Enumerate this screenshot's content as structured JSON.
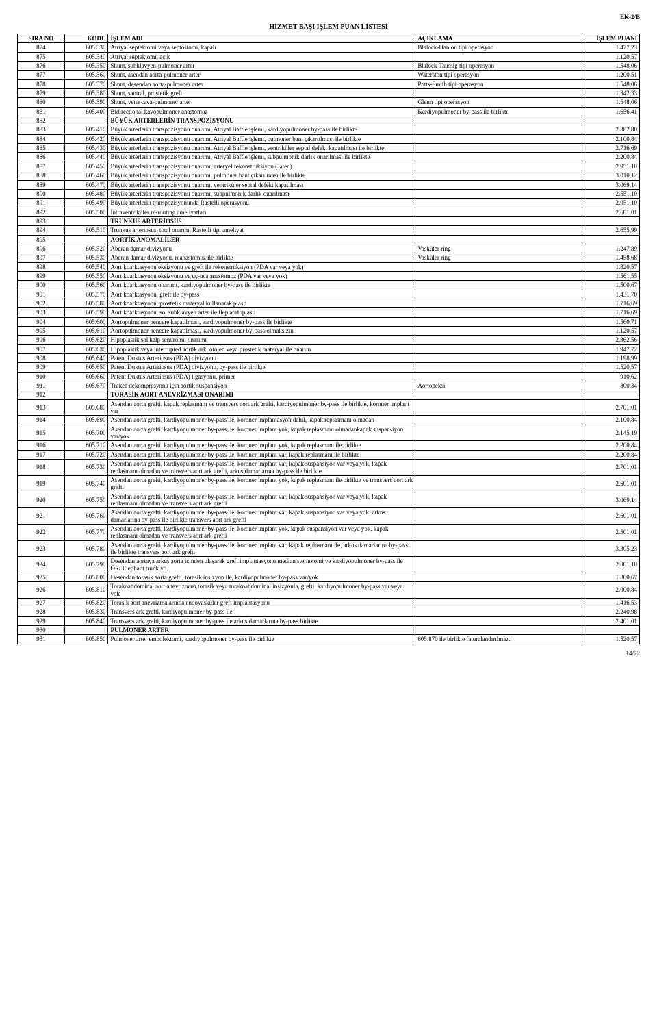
{
  "header_label": "EK-2/B",
  "title": "HİZMET BAŞI İŞLEM PUAN LİSTESİ",
  "footer": "14/72",
  "columns": [
    "SIRA NO",
    "KODU",
    "İŞLEM ADI",
    "AÇIKLAMA",
    "İŞLEM PUANI"
  ],
  "rows": [
    {
      "sira": "874",
      "kodu": "605.330",
      "adi": "Atriyal septektomi veya septostomi, kapalı",
      "aciklama": "Blalock-Hanlon tipi operasyon",
      "puan": "1.477,23"
    },
    {
      "sira": "875",
      "kodu": "605.340",
      "adi": "Atriyal septektomi, açık",
      "aciklama": "",
      "puan": "1.120,57"
    },
    {
      "sira": "876",
      "kodu": "605.350",
      "adi": "Shunt, subklavyen-pulmoner arter",
      "aciklama": "Blalock-Taussig tipi operasyon",
      "puan": "1.548,06"
    },
    {
      "sira": "877",
      "kodu": "605.360",
      "adi": "Shunt, asendan aorta-pulmoner arter",
      "aciklama": "Waterston tipi operasyon",
      "puan": "1.200,51"
    },
    {
      "sira": "878",
      "kodu": "605.370",
      "adi": "Shunt, desendan aorta-pulmoner arter",
      "aciklama": "Potts-Smith tipi operasyon",
      "puan": "1.548,06"
    },
    {
      "sira": "879",
      "kodu": "605.380",
      "adi": "Shunt, santral, prostetik greft",
      "aciklama": "",
      "puan": "1.342,33"
    },
    {
      "sira": "880",
      "kodu": "605.390",
      "adi": "Shunt, vena cava-pulmoner arter",
      "aciklama": "Glenn tipi operasyon",
      "puan": "1.548,06"
    },
    {
      "sira": "881",
      "kodu": "605.400",
      "adi": "Bidirectional kavopulmoner anastomoz",
      "aciklama": "Kardiyopulmoner by-pass ile birlikte",
      "puan": "1.656,41"
    },
    {
      "sira": "882",
      "kodu": "",
      "adi": "BÜYÜK ARTERLERİN TRANSPOZİSYONU",
      "aciklama": "",
      "puan": "",
      "bold": true
    },
    {
      "sira": "883",
      "kodu": "605.410",
      "adi": "Büyük arterlerin transpozisyonu onarımı, Atriyal Baffle işlemi, kardiyopulmoner by-pass ile birlikte",
      "aciklama": "",
      "puan": "2.382,80"
    },
    {
      "sira": "884",
      "kodu": "605.420",
      "adi": "Büyük arterlerin transpozisyonu onarımı, Atriyal Baffle işlemi, pulmoner bant çıkartılması ile birlikte",
      "aciklama": "",
      "puan": "2.100,84"
    },
    {
      "sira": "885",
      "kodu": "605.430",
      "adi": "Büyük arterlerin transpozisyonu onarımı, Atriyal Baffle işlemi, ventriküler septal defekt kapatılması ile birlikte",
      "aciklama": "",
      "puan": "2.716,69"
    },
    {
      "sira": "886",
      "kodu": "605.440",
      "adi": "Büyük arterlerin transpozisyonu onarımı, Atriyal Baffle işlemi, subpulmonik darlık onarılması ile birlikte",
      "aciklama": "",
      "puan": "2.200,84"
    },
    {
      "sira": "887",
      "kodu": "605.450",
      "adi": "Büyük arterlerin transpozisyonu onarımı, arteryel rekonstruksiyon (Jaten)",
      "aciklama": "",
      "puan": "2.951,10"
    },
    {
      "sira": "888",
      "kodu": "605.460",
      "adi": "Büyük arterlerin transpozisyonu onarımı, pulmoner bant çıkarılması ile birlikte",
      "aciklama": "",
      "puan": "3.010,12"
    },
    {
      "sira": "889",
      "kodu": "605.470",
      "adi": "Büyük arterlerin transpozisyonu onarımı, ventriküler septal defekt kapatılması",
      "aciklama": "",
      "puan": "3.069,14"
    },
    {
      "sira": "890",
      "kodu": "605.480",
      "adi": "Büyük arterlerin transpozisyonu onarımı, subpulmonik darlık onarılması",
      "aciklama": "",
      "puan": "2.551,10"
    },
    {
      "sira": "891",
      "kodu": "605.490",
      "adi": "Büyük arterlerin transpozisyonunda Rastelli operasyonu",
      "aciklama": "",
      "puan": "2.951,10"
    },
    {
      "sira": "892",
      "kodu": "605.500",
      "adi": "İntraventriküler re-routing ameliyatları",
      "aciklama": "",
      "puan": "2.601,01"
    },
    {
      "sira": "893",
      "kodu": "",
      "adi": "TRUNKUS ARTERİOSUS",
      "aciklama": "",
      "puan": "",
      "bold": true
    },
    {
      "sira": "894",
      "kodu": "605.510",
      "adi": "Trunkus arteriosus, total onarım, Rastelli tipi ameliyat",
      "aciklama": "",
      "puan": "2.655,99"
    },
    {
      "sira": "895",
      "kodu": "",
      "adi": "AORTİK ANOMALİLER",
      "aciklama": "",
      "puan": "",
      "bold": true
    },
    {
      "sira": "896",
      "kodu": "605.520",
      "adi": "Aberan damar divizyonu",
      "aciklama": "Vasküler ring",
      "puan": "1.247,89"
    },
    {
      "sira": "897",
      "kodu": "605.530",
      "adi": "Aberan damar divizyonu, reanastomoz ile birlikte",
      "aciklama": "Vasküler ring",
      "puan": "1.458,68"
    },
    {
      "sira": "898",
      "kodu": "605.540",
      "adi": "Aort koarktasyonu eksizyonu ve greft ile rekonstrüksiyon (PDA var veya yok)",
      "aciklama": "",
      "puan": "1.320,57"
    },
    {
      "sira": "899",
      "kodu": "605.550",
      "adi": "Aort koarktasyonu eksizyonu ve uç-uca anastomoz (PDA var veya yok)",
      "aciklama": "",
      "puan": "1.561,55"
    },
    {
      "sira": "900",
      "kodu": "605.560",
      "adi": "Aort koarktasyonu onarımı, kardiyopulmoner by-pass ile birlikte",
      "aciklama": "",
      "puan": "1.500,67"
    },
    {
      "sira": "901",
      "kodu": "605.570",
      "adi": "Aort koarktasyonu, greft ile by-pass",
      "aciklama": "",
      "puan": "1.431,70"
    },
    {
      "sira": "902",
      "kodu": "605.580",
      "adi": "Aort koarktasyonu, prostetik materyal kullanarak plasti",
      "aciklama": "",
      "puan": "1.716,69"
    },
    {
      "sira": "903",
      "kodu": "605.590",
      "adi": "Aort koarktasyonu, sol subklavyen arter ile flep aortoplasti",
      "aciklama": "",
      "puan": "1.716,69"
    },
    {
      "sira": "904",
      "kodu": "605.600",
      "adi": "Aortopulmoner pencere kapatılması, kardiyopulmoner by-pass ile birlikte",
      "aciklama": "",
      "puan": "1.560,71"
    },
    {
      "sira": "905",
      "kodu": "605.610",
      "adi": "Aortopulmoner pencere kapatılması, kardiyopulmoner by-pass olmaksızın",
      "aciklama": "",
      "puan": "1.120,57"
    },
    {
      "sira": "906",
      "kodu": "605.620",
      "adi": "Hipoplastik sol kalp sendromu onarımı",
      "aciklama": "",
      "puan": "2.362,56"
    },
    {
      "sira": "907",
      "kodu": "605.630",
      "adi": "Hipoplastik veya interrupted aortik ark, otojen veya prostetik materyal ile onarım",
      "aciklama": "",
      "puan": "1.947,72"
    },
    {
      "sira": "908",
      "kodu": "605.640",
      "adi": "Patent Duktus Arteriosus (PDA) divizyonu",
      "aciklama": "",
      "puan": "1.198,99"
    },
    {
      "sira": "909",
      "kodu": "605.650",
      "adi": "Patent Duktus Arteriosus (PDA) divizyonu, by-pass ile birlikte",
      "aciklama": "",
      "puan": "1.520,57"
    },
    {
      "sira": "910",
      "kodu": "605.660",
      "adi": "Patent Duktus Arteriosus (PDA) ligasyonu, primer",
      "aciklama": "",
      "puan": "910,62"
    },
    {
      "sira": "911",
      "kodu": "605.670",
      "adi": "Trakea dekompresyonu için aortik suspansiyon",
      "aciklama": "Aortopeksi",
      "puan": "800,34"
    },
    {
      "sira": "912",
      "kodu": "",
      "adi": "TORASİK AORT ANEVRİZMASI ONARIMI",
      "aciklama": "",
      "puan": "",
      "bold": true
    },
    {
      "sira": "913",
      "kodu": "605.680",
      "adi": "Asendan aorta grefti, kapak replasmanı ve transvers aort ark grefti, kardiyopulmoner by-pass ile birlikte, koroner implant var",
      "aciklama": "",
      "puan": "2.701,01"
    },
    {
      "sira": "914",
      "kodu": "605.690",
      "adi": "Asendan aorta grefti, kardiyopulmoner by-pass ile, koroner implantasyon dahil, kapak replasmanı olmadan",
      "aciklama": "",
      "puan": "2.100,84"
    },
    {
      "sira": "915",
      "kodu": "605.700",
      "adi": "Asendan aorta grefti, kardiyopulmoner by-pass ile, koroner implant yok, kapak replasmanı olmadankapak suspansiyon var/yok",
      "aciklama": "",
      "puan": "2.145,19"
    },
    {
      "sira": "916",
      "kodu": "605.710",
      "adi": "Asendan aorta grefti, kardiyopulmoner by-pass ile, koroner implant yok, kapak replasmanı ile birlikte",
      "aciklama": "",
      "puan": "2.200,84"
    },
    {
      "sira": "917",
      "kodu": "605.720",
      "adi": "Asendan aorta grefti, kardiyopulmoner by-pass ile, koroner implant var, kapak replasmanı ile birlikte",
      "aciklama": "",
      "puan": "2.200,84"
    },
    {
      "sira": "918",
      "kodu": "605.730",
      "adi": "Asendan aorta grefti, kardiyopulmoner by-pass ile, koroner implant var, kapak suspansiyon var veya yok, kapak replasmanı olmadan ve transvers aort ark grefti, arkus damarlarına by-pass ile birlikte",
      "aciklama": "",
      "puan": "2.701,01"
    },
    {
      "sira": "919",
      "kodu": "605.740",
      "adi": "Asendan aorta grefti, kardiyopulmoner by-pass ile, koroner implant yok, kapak replasmanı ile birlikte ve transvers aort ark grefti",
      "aciklama": "",
      "puan": "2.601,01"
    },
    {
      "sira": "920",
      "kodu": "605.750",
      "adi": "Asendan aorta grefti, kardiyopulmoner by-pass ile, koroner implant var, kapak suspansiyon var veya yok, kapak replasmanı olmadan ve transvers aort ark grefti",
      "aciklama": "",
      "puan": "3.069,14"
    },
    {
      "sira": "921",
      "kodu": "605.760",
      "adi": "Asendan aorta grefti, kardiyopulmoner by-pass ile, koroner implant var, kapak suspansiyon var veya yok, arkus damarlarına by-pass ile birlikte transvers aort ark grefti",
      "aciklama": "",
      "puan": "2.601,01"
    },
    {
      "sira": "922",
      "kodu": "605.770",
      "adi": "Asendan aorta grefti, kardiyopulmoner by-pass ile, koroner implant yok, kapak suspansiyon var veya yok, kapak replasmanı olmadan ve transvers aort ark grefti",
      "aciklama": "",
      "puan": "2.501,01"
    },
    {
      "sira": "923",
      "kodu": "605.780",
      "adi": "Asendan aorta grefti, kardiyopulmoner by-pass ile, koroner implant var, kapak replasmanı ile, arkus damarlarına by-pass ile birlikte transvers aort ark grefti",
      "aciklama": "",
      "puan": "3.305,23"
    },
    {
      "sira": "924",
      "kodu": "605.790",
      "adi": "Desendan aortaya arkus aorta içinden ulaşarak greft implantasyonu median sternotomi ve kardiyopulmoner by-pass ile ÖR/ Elephant trunk vb.",
      "aciklama": "",
      "puan": "2.801,18"
    },
    {
      "sira": "925",
      "kodu": "605.800",
      "adi": "Desendan torasik aorta grefti, torasik insizyon ile, kardiyopulmoner by-pass var/yok",
      "aciklama": "",
      "puan": "1.800,67"
    },
    {
      "sira": "926",
      "kodu": "605.810",
      "adi": "Torakoabdominal aort anevrizması,torasik veya torakoabdominal insizyonla, grefti, kardiyopulmoner by-pass var veya yok",
      "aciklama": "",
      "puan": "2.000,84"
    },
    {
      "sira": "927",
      "kodu": "605.820",
      "adi": "Torasik aort anevrizmalarında endovasküler greft implantasyonu",
      "aciklama": "",
      "puan": "1.416,53"
    },
    {
      "sira": "928",
      "kodu": "605.830",
      "adi": "Transvers ark grefti, kardiyopulmoner by-pass ile",
      "aciklama": "",
      "puan": "2.240,98"
    },
    {
      "sira": "929",
      "kodu": "605.840",
      "adi": "Transvers ark grefti, kardiyopulmoner by-pass ile arkus damarlarına by-pass birlikte",
      "aciklama": "",
      "puan": "2.401,01"
    },
    {
      "sira": "930",
      "kodu": "",
      "adi": "PULMONER ARTER",
      "aciklama": "",
      "puan": "",
      "bold": true
    },
    {
      "sira": "931",
      "kodu": "605.850",
      "adi": "Pulmoner arter embolektomi, kardiyopulmoner by-pass ile birlikte",
      "aciklama": "605.870 ile birlikte faturalandırılmaz.",
      "puan": "1.520,57"
    }
  ]
}
